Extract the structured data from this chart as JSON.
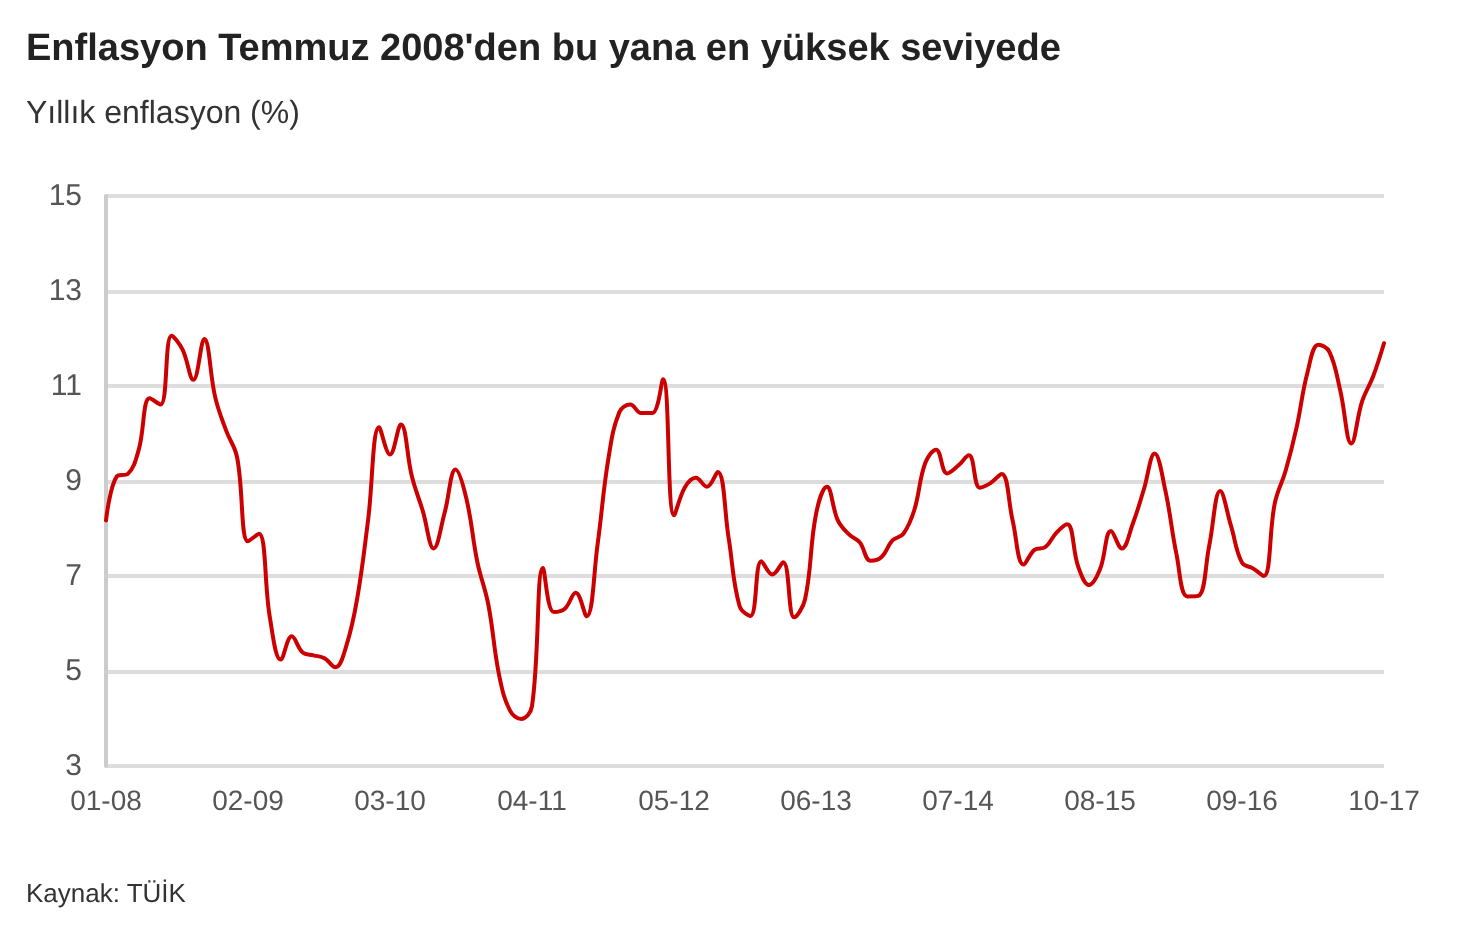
{
  "chart_data": {
    "type": "line",
    "title": "Enflasyon Temmuz 2008'den bu yana en yüksek seviyede",
    "subtitle": "Yıllık enflasyon (%)",
    "annotations": [
      "Kaynak: TÜİK"
    ],
    "categories": [
      "01-08",
      null,
      null,
      null,
      null,
      null,
      null,
      null,
      null,
      null,
      null,
      null,
      null,
      "02-09",
      null,
      null,
      null,
      null,
      null,
      null,
      null,
      null,
      null,
      null,
      null,
      null,
      "03-10",
      null,
      null,
      null,
      null,
      null,
      null,
      null,
      null,
      null,
      null,
      null,
      null,
      "04-11",
      null,
      null,
      null,
      null,
      null,
      null,
      null,
      null,
      null,
      null,
      null,
      null,
      "05-12",
      null,
      null,
      null,
      null,
      null,
      null,
      null,
      null,
      null,
      null,
      null,
      null,
      "06-13",
      null,
      null,
      null,
      null,
      null,
      null,
      null,
      null,
      null,
      null,
      null,
      null,
      "07-14",
      null,
      null,
      null,
      null,
      null,
      null,
      null,
      null,
      null,
      null,
      null,
      null,
      "08-15",
      null,
      null,
      null,
      null,
      null,
      null,
      null,
      null,
      null,
      null,
      null,
      null,
      "09-16",
      null,
      null,
      null,
      null,
      null,
      null,
      null,
      null,
      null,
      null,
      null,
      null,
      "10-17"
    ],
    "series": [
      {
        "color": "#cc0000",
        "values": [
          8.17,
          9.1,
          9.15,
          9.66,
          10.74,
          10.61,
          12.06,
          11.77,
          11.13,
          11.99,
          10.76,
          10.06,
          9.5,
          7.73,
          7.89,
          6.13,
          5.24,
          5.73,
          5.39,
          5.33,
          5.27,
          5.08,
          5.53,
          6.53,
          8.19,
          10.13,
          9.56,
          10.19,
          9.1,
          8.37,
          7.58,
          8.33,
          9.24,
          8.62,
          7.29,
          6.4,
          4.9,
          4.16,
          3.99,
          4.26,
          7.17,
          6.24,
          6.31,
          6.65,
          6.15,
          7.66,
          9.48,
          10.45,
          10.61,
          10.43,
          10.43,
          11.14,
          8.28,
          8.87,
          9.07,
          8.88,
          9.19,
          7.8,
          6.37,
          6.16,
          7.31,
          7.03,
          7.29,
          6.13,
          6.51,
          8.3,
          8.88,
          8.17,
          7.88,
          7.71,
          7.32,
          7.4,
          7.75,
          7.89,
          8.39,
          9.38,
          9.66,
          9.16,
          9.32,
          9.54,
          8.86,
          8.96,
          9.15,
          8.17,
          7.24,
          7.55,
          7.61,
          7.91,
          8.09,
          7.2,
          6.81,
          7.14,
          7.95,
          7.58,
          8.1,
          8.81,
          9.58,
          8.78,
          7.46,
          6.57,
          6.58,
          7.64,
          8.79,
          8.05,
          7.28,
          7.16,
          7.0,
          8.53,
          9.22,
          10.13,
          11.29,
          11.87,
          11.72,
          10.9,
          9.79,
          10.68,
          11.2,
          11.9
        ]
      }
    ],
    "ylim": [
      3,
      15
    ],
    "yticks": [
      3,
      5,
      7,
      9,
      11,
      13,
      15
    ],
    "grid": "y",
    "marker": "none",
    "line_style": "solid"
  }
}
